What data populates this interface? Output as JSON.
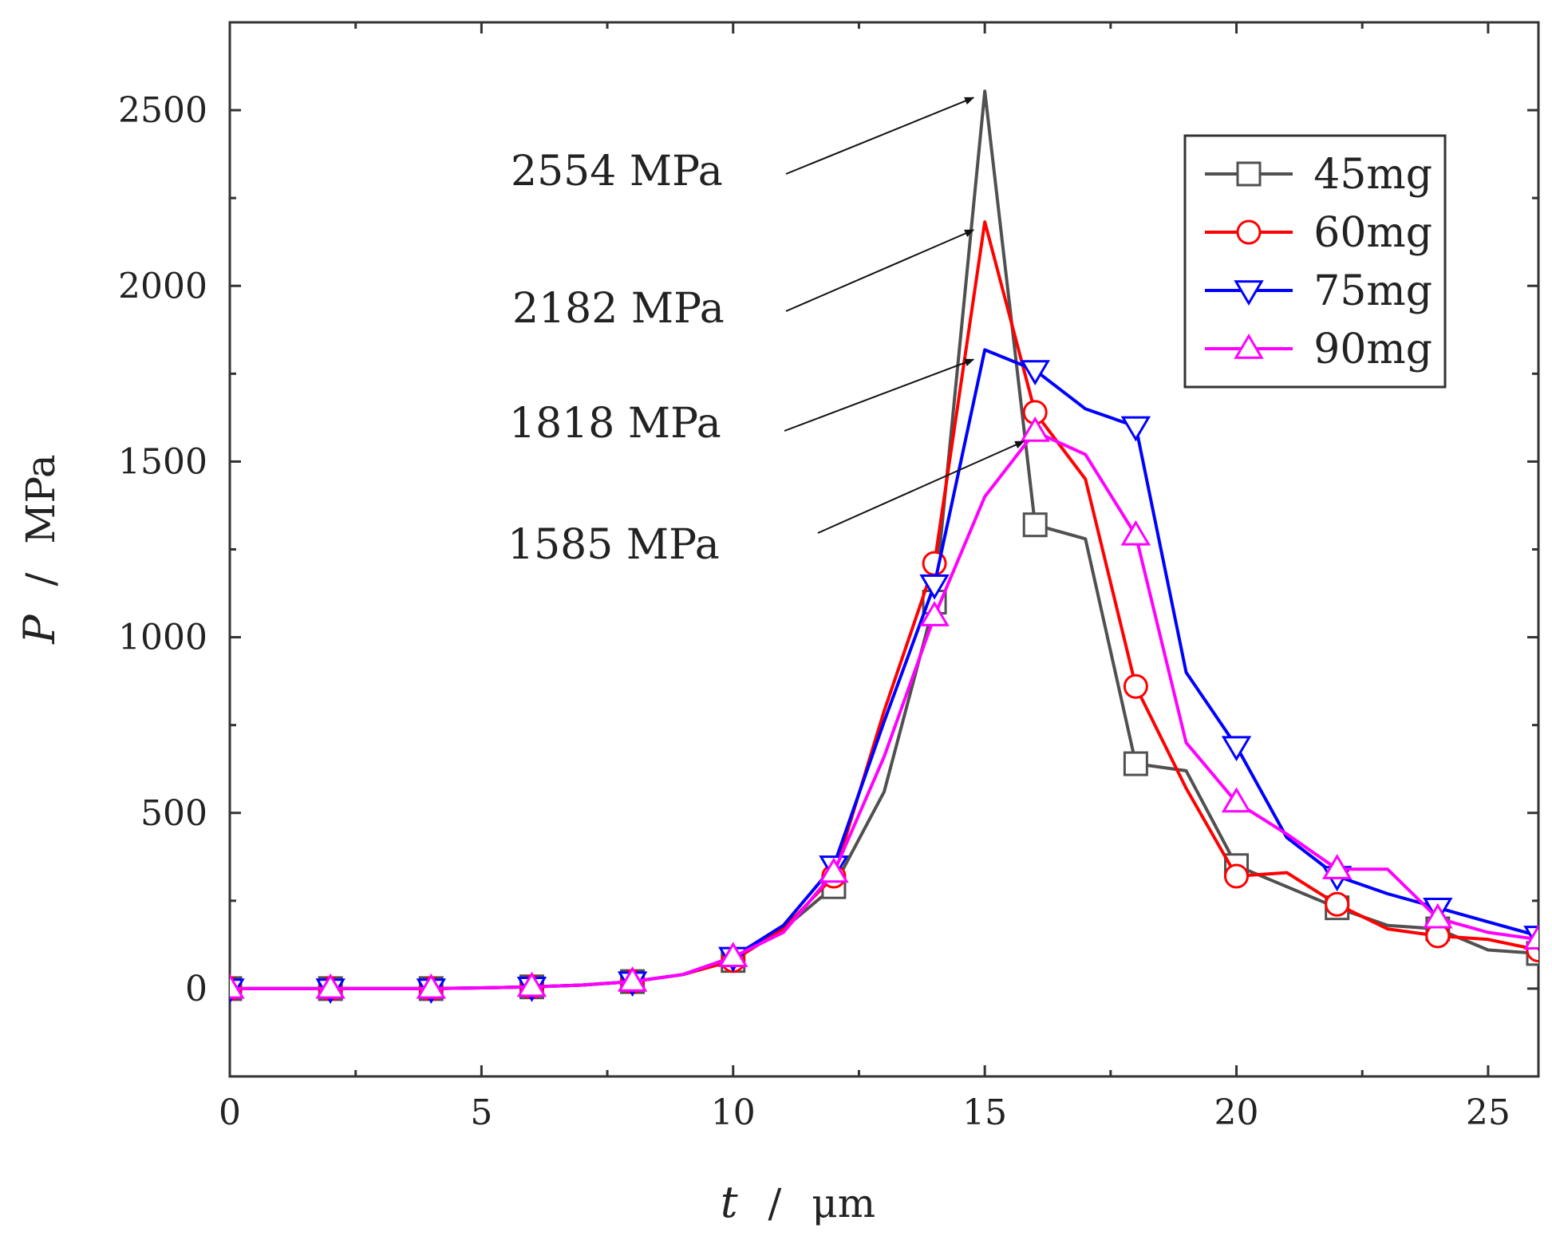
{
  "chart_data": {
    "type": "line",
    "xlabel_symbol": "t",
    "xlabel_sep": "/",
    "xlabel_unit": "μm",
    "ylabel_symbol": "P",
    "ylabel_sep": "/",
    "ylabel_unit": "MPa",
    "xlim": [
      0,
      26
    ],
    "ylim": [
      -250,
      2750
    ],
    "x_ticks": [
      0,
      5,
      10,
      15,
      20,
      25
    ],
    "y_ticks": [
      0,
      500,
      1000,
      1500,
      2000,
      2500
    ],
    "legend_position": "top-right",
    "series": [
      {
        "name": "45mg",
        "color": "#505050",
        "marker": "square",
        "x": [
          0,
          1,
          2,
          3,
          4,
          5,
          6,
          7,
          8,
          9,
          10,
          11,
          12,
          13,
          14,
          15,
          16,
          17,
          18,
          19,
          20,
          21,
          22,
          23,
          24,
          25,
          26
        ],
        "y": [
          0,
          0,
          0,
          0,
          0,
          2,
          5,
          10,
          20,
          40,
          80,
          170,
          290,
          560,
          1100,
          2554,
          1320,
          1280,
          640,
          620,
          350,
          290,
          230,
          180,
          170,
          110,
          100
        ],
        "marker_x": [
          0,
          2,
          4,
          6,
          8,
          10,
          12,
          14,
          16,
          18,
          20,
          22,
          24,
          26
        ]
      },
      {
        "name": "60mg",
        "color": "#ff0000",
        "marker": "circle",
        "x": [
          0,
          1,
          2,
          3,
          4,
          5,
          6,
          7,
          8,
          9,
          10,
          11,
          12,
          13,
          14,
          15,
          16,
          17,
          18,
          19,
          20,
          21,
          22,
          23,
          24,
          25,
          26
        ],
        "y": [
          0,
          0,
          0,
          0,
          0,
          2,
          5,
          10,
          20,
          40,
          80,
          170,
          320,
          790,
          1210,
          2182,
          1640,
          1450,
          860,
          570,
          320,
          330,
          240,
          170,
          150,
          140,
          110
        ],
        "marker_x": [
          0,
          2,
          4,
          6,
          8,
          10,
          12,
          14,
          16,
          18,
          20,
          22,
          24,
          26
        ]
      },
      {
        "name": "75mg",
        "color": "#0000ff",
        "marker": "triangle-down",
        "x": [
          0,
          1,
          2,
          3,
          4,
          5,
          6,
          7,
          8,
          9,
          10,
          11,
          12,
          13,
          14,
          15,
          16,
          17,
          18,
          19,
          20,
          21,
          22,
          23,
          24,
          25,
          26
        ],
        "y": [
          0,
          0,
          0,
          0,
          0,
          2,
          5,
          10,
          20,
          40,
          90,
          180,
          350,
          760,
          1150,
          1818,
          1760,
          1650,
          1600,
          900,
          690,
          430,
          320,
          270,
          230,
          190,
          150
        ],
        "marker_x": [
          0,
          2,
          4,
          6,
          8,
          10,
          12,
          14,
          16,
          18,
          20,
          22,
          24,
          26
        ]
      },
      {
        "name": "90mg",
        "color": "#ff00ff",
        "marker": "triangle-up",
        "x": [
          0,
          1,
          2,
          3,
          4,
          5,
          6,
          7,
          8,
          9,
          10,
          11,
          12,
          13,
          14,
          15,
          16,
          17,
          18,
          19,
          20,
          21,
          22,
          23,
          24,
          25,
          26
        ],
        "y": [
          0,
          0,
          0,
          0,
          0,
          2,
          5,
          10,
          20,
          40,
          90,
          160,
          330,
          660,
          1060,
          1400,
          1585,
          1520,
          1290,
          700,
          530,
          440,
          340,
          340,
          200,
          160,
          140
        ],
        "marker_x": [
          0,
          2,
          4,
          6,
          8,
          10,
          12,
          14,
          16,
          18,
          20,
          22,
          24,
          26
        ]
      }
    ],
    "annotations": [
      {
        "text": "2554 MPa",
        "target_x": 15,
        "target_y": 2554
      },
      {
        "text": "2182 MPa",
        "target_x": 15,
        "target_y": 2182
      },
      {
        "text": "1818 MPa",
        "target_x": 15,
        "target_y": 1818
      },
      {
        "text": "1585 MPa",
        "target_x": 16,
        "target_y": 1585
      }
    ]
  }
}
